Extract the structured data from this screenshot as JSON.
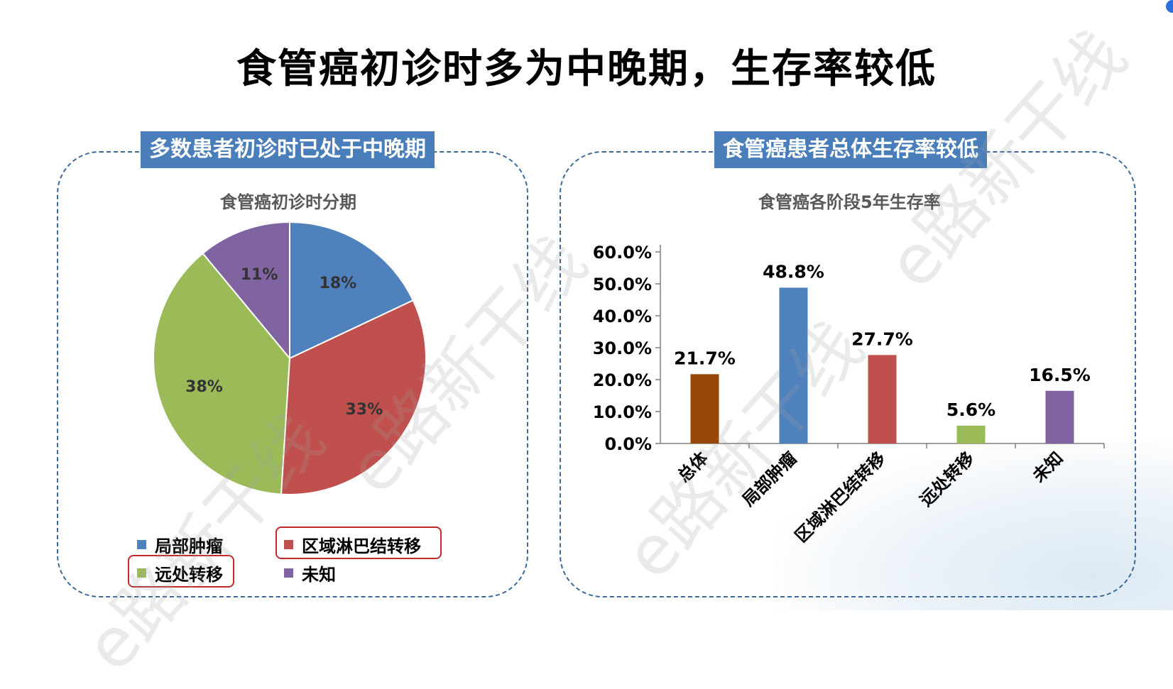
{
  "page": {
    "title": "食管癌初诊时多为中晚期，生存率较低"
  },
  "panels": {
    "left_header": "多数患者初诊时已处于中晚期",
    "right_header": "食管癌患者总体生存率较低"
  },
  "watermark": "e路新干线",
  "colors": {
    "blue": "#4f81bd",
    "red": "#c0504d",
    "green": "#9bbb59",
    "purple": "#8064a2",
    "brown": "#984806",
    "header_bg": "#4a7ebb",
    "highlight_outline": "#c0282a"
  },
  "chart_data": [
    {
      "type": "pie",
      "title": "食管癌初诊时分期",
      "categories": [
        "局部肿瘤",
        "区域淋巴结转移",
        "远处转移",
        "未知"
      ],
      "values": [
        18,
        33,
        38,
        11
      ],
      "labels": [
        "18%",
        "33%",
        "38%",
        "11%"
      ],
      "colors": [
        "#4f81bd",
        "#c0504d",
        "#9bbb59",
        "#8064a2"
      ],
      "legend": "bottom",
      "highlighted_legend_items": [
        "区域淋巴结转移",
        "远处转移"
      ]
    },
    {
      "type": "bar",
      "title": "食管癌各阶段5年生存率",
      "categories": [
        "总体",
        "局部肿瘤",
        "区域淋巴结转移",
        "远处转移",
        "未知"
      ],
      "values": [
        21.7,
        48.8,
        27.7,
        5.6,
        16.5
      ],
      "labels": [
        "21.7%",
        "48.8%",
        "27.7%",
        "5.6%",
        "16.5%"
      ],
      "colors": [
        "#984806",
        "#4f81bd",
        "#c0504d",
        "#9bbb59",
        "#8064a2"
      ],
      "ylim": [
        0,
        60
      ],
      "yticks": [
        "0.0%",
        "10.0%",
        "20.0%",
        "30.0%",
        "40.0%",
        "50.0%",
        "60.0%"
      ],
      "grid": false
    }
  ]
}
